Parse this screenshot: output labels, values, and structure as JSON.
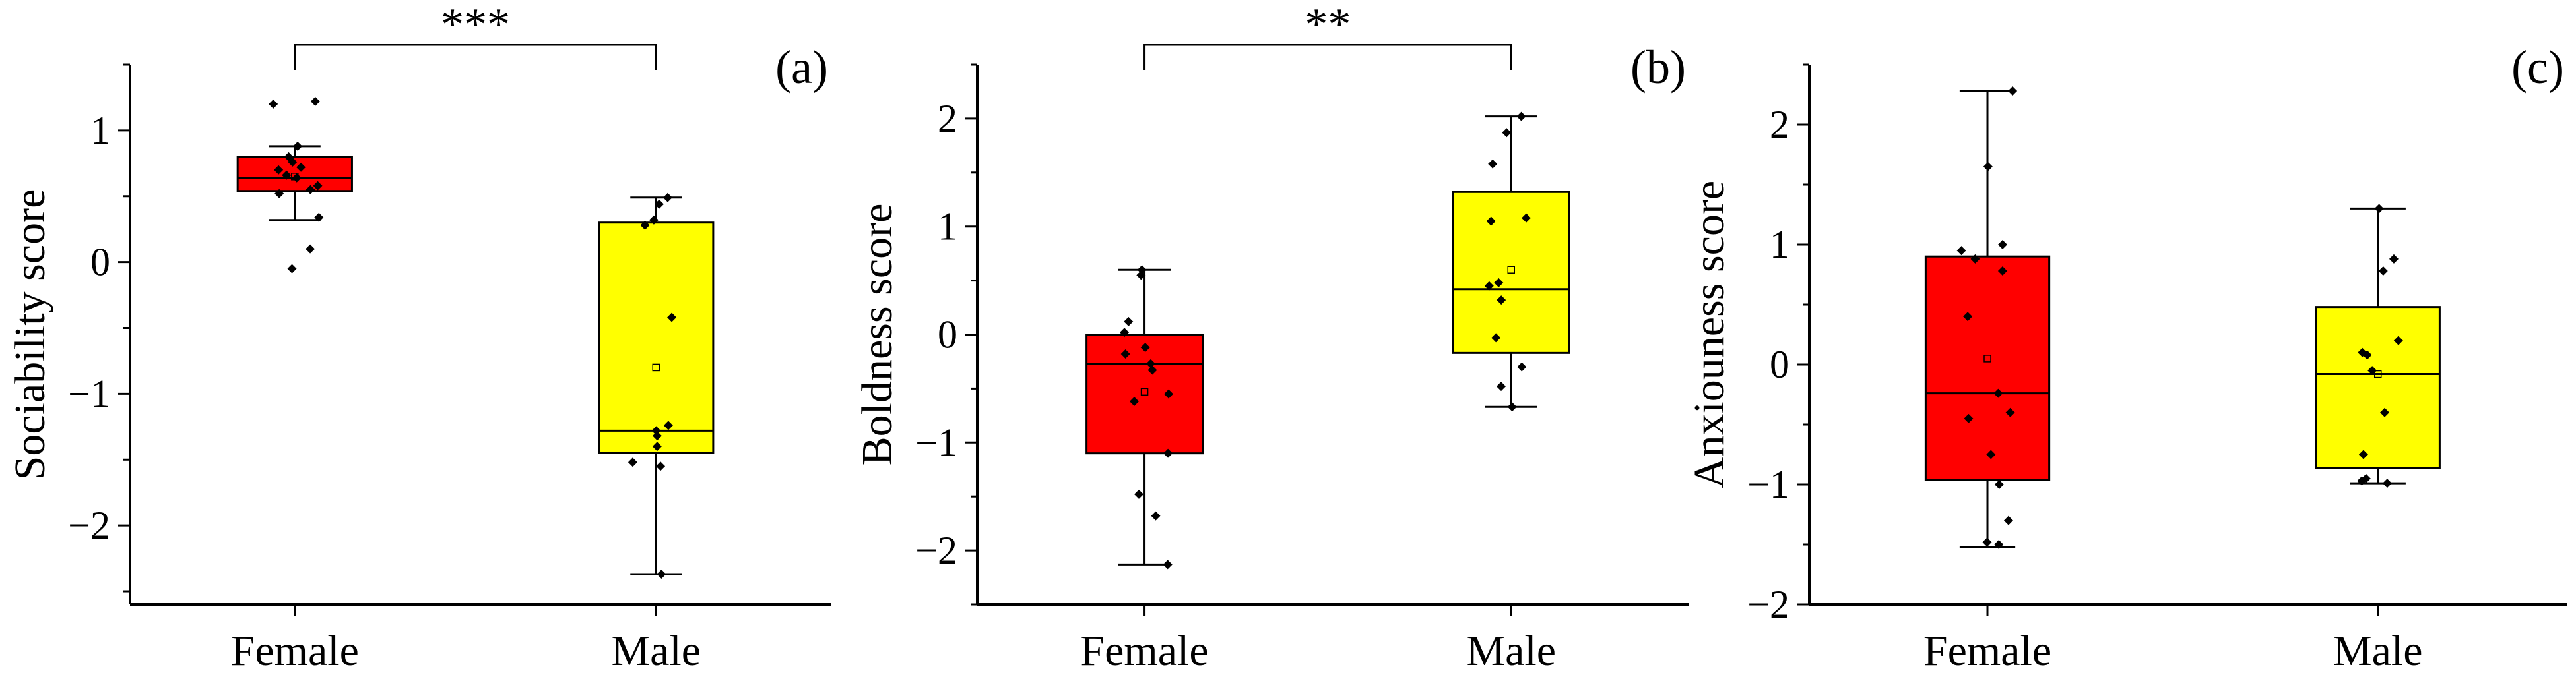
{
  "colors": {
    "female": "#ff0000",
    "male": "#ffff00",
    "stroke": "#000000"
  },
  "chart_data": [
    {
      "type": "box",
      "panel_label": "(a)",
      "ylabel": "Sociability score",
      "ylim": [
        -2.6,
        1.5
      ],
      "yticks": [
        -2,
        -1,
        0,
        1
      ],
      "ytick_labels": [
        "−2",
        "−1",
        "0",
        "1"
      ],
      "categories": [
        "Female",
        "Male"
      ],
      "significance": "***",
      "groups": [
        {
          "category": "Female",
          "color": "#ff0000",
          "whisker_low": 0.32,
          "q1": 0.54,
          "median": 0.64,
          "q3": 0.8,
          "whisker_high": 0.88,
          "mean": 0.65,
          "points": [
            1.22,
            1.2,
            0.88,
            0.8,
            0.76,
            0.72,
            0.7,
            0.66,
            0.64,
            0.58,
            0.55,
            0.52,
            0.34,
            0.1,
            -0.05
          ]
        },
        {
          "category": "Male",
          "color": "#ffff00",
          "whisker_low": -2.37,
          "q1": -1.45,
          "median": -1.28,
          "q3": 0.3,
          "whisker_high": 0.49,
          "mean": -0.8,
          "points": [
            0.49,
            0.44,
            0.32,
            0.28,
            -0.42,
            -1.24,
            -1.28,
            -1.32,
            -1.4,
            -1.52,
            -1.55,
            -2.37
          ]
        }
      ]
    },
    {
      "type": "box",
      "panel_label": "(b)",
      "ylabel": "Boldness score",
      "ylim": [
        -2.5,
        2.5
      ],
      "yticks": [
        -2,
        -1,
        0,
        1,
        2
      ],
      "ytick_labels": [
        "−2",
        "−1",
        "0",
        "1",
        "2"
      ],
      "categories": [
        "Female",
        "Male"
      ],
      "significance": "**",
      "groups": [
        {
          "category": "Female",
          "color": "#ff0000",
          "whisker_low": -2.13,
          "q1": -1.1,
          "median": -0.27,
          "q3": 0.0,
          "whisker_high": 0.6,
          "mean": -0.53,
          "points": [
            0.6,
            0.55,
            0.12,
            0.02,
            -0.12,
            -0.18,
            -0.27,
            -0.33,
            -0.55,
            -0.62,
            -1.1,
            -1.48,
            -1.68,
            -2.13
          ]
        },
        {
          "category": "Male",
          "color": "#ffff00",
          "whisker_low": -0.67,
          "q1": -0.17,
          "median": 0.42,
          "q3": 1.32,
          "whisker_high": 2.02,
          "mean": 0.6,
          "points": [
            2.02,
            1.87,
            1.58,
            1.08,
            1.05,
            0.48,
            0.45,
            0.32,
            -0.03,
            -0.3,
            -0.48,
            -0.67
          ]
        }
      ]
    },
    {
      "type": "box",
      "panel_label": "(c)",
      "ylabel": "Anxiouness score",
      "ylim": [
        -2.0,
        2.5
      ],
      "yticks": [
        -2,
        -1,
        0,
        1,
        2
      ],
      "ytick_labels": [
        "−2",
        "−1",
        "0",
        "1",
        "2"
      ],
      "categories": [
        "Female",
        "Male"
      ],
      "significance": "",
      "groups": [
        {
          "category": "Female",
          "color": "#ff0000",
          "whisker_low": -1.52,
          "q1": -0.96,
          "median": -0.24,
          "q3": 0.9,
          "whisker_high": 2.28,
          "mean": 0.05,
          "points": [
            2.28,
            1.65,
            1.0,
            0.95,
            0.88,
            0.78,
            0.4,
            -0.24,
            -0.4,
            -0.45,
            -0.75,
            -1.0,
            -1.3,
            -1.48,
            -1.5
          ]
        },
        {
          "category": "Male",
          "color": "#ffff00",
          "whisker_low": -0.99,
          "q1": -0.86,
          "median": -0.08,
          "q3": 0.48,
          "whisker_high": 1.3,
          "mean": -0.08,
          "points": [
            1.3,
            0.88,
            0.78,
            0.2,
            0.1,
            0.08,
            -0.05,
            -0.4,
            -0.75,
            -0.95,
            -0.97,
            -0.99
          ]
        }
      ]
    }
  ]
}
